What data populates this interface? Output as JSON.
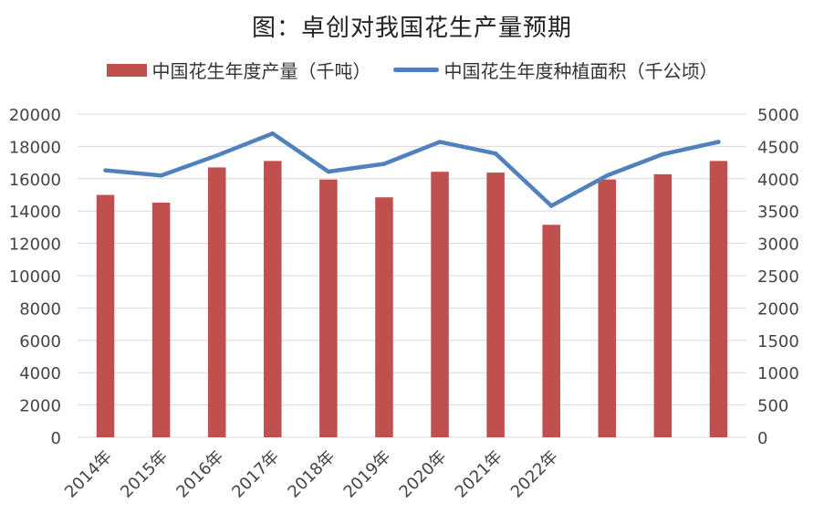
{
  "chart_data": {
    "type": "bar",
    "title": "图：卓创对我国花生产量预期",
    "categories": [
      "2014年",
      "2015年",
      "2016年",
      "2017年",
      "2018年",
      "2019年",
      "2020年",
      "2021年",
      "2022年",
      "",
      "",
      ""
    ],
    "series": [
      {
        "name": "中国花生年度产量（千吨）",
        "type": "bar",
        "axis": "left",
        "color": "#c0504d",
        "values": [
          15000,
          14520,
          16700,
          17100,
          15950,
          14850,
          16430,
          16380,
          13150,
          15950,
          16280,
          17100
        ]
      },
      {
        "name": "中国花生年度种植面积（千公顷）",
        "type": "line",
        "axis": "right",
        "color": "#4f81bd",
        "values": [
          4130,
          4050,
          4360,
          4700,
          4110,
          4230,
          4570,
          4390,
          3580,
          4050,
          4380,
          4570
        ]
      }
    ],
    "yleft": {
      "min": 0,
      "max": 20000,
      "ticks": [
        0,
        2000,
        4000,
        6000,
        8000,
        10000,
        12000,
        14000,
        16000,
        18000,
        20000
      ]
    },
    "yright": {
      "min": 0,
      "max": 5000,
      "ticks": [
        0,
        500,
        1000,
        1500,
        2000,
        2500,
        3000,
        3500,
        4000,
        4500,
        5000
      ]
    },
    "grid": true,
    "legend": "top"
  }
}
